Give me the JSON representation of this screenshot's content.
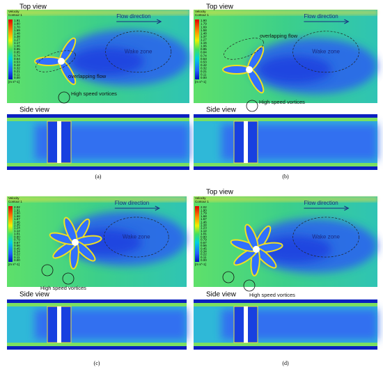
{
  "panels": [
    {
      "label": "(a)",
      "top_view": "Top view",
      "side_view": "Side view",
      "legend": {
        "title": [
          "Velocity",
          "Contour 1"
        ],
        "ticks": [
          "1.91",
          "1.80",
          "1.70",
          "1.59",
          "1.48",
          "1.38",
          "1.27",
          "1.17",
          "1.06",
          "0.95",
          "0.85",
          "0.74",
          "0.64",
          "0.53",
          "0.42",
          "0.32",
          "0.21",
          "0.11",
          "0.00"
        ],
        "unit": "[m s^-1]"
      },
      "annotations": {
        "flow": "Flow direction",
        "wake": "Wake zone",
        "overlap": "overlapping flow",
        "vortices": "High speed vortices"
      }
    },
    {
      "label": "(b)",
      "top_view": "Top view",
      "side_view": "Side view",
      "legend": {
        "title": [
          "Velocity",
          "Contour 1"
        ],
        "ticks": [
          "1.90",
          "1.79",
          "1.69",
          "1.58",
          "1.48",
          "1.37",
          "1.27",
          "1.16",
          "1.06",
          "0.95",
          "0.84",
          "0.74",
          "0.63",
          "0.53",
          "0.42",
          "0.32",
          "0.21",
          "0.11",
          "0.00"
        ],
        "unit": "[m s^-1]"
      },
      "annotations": {
        "flow": "Flow direction",
        "wake": "Wake zone",
        "overlap": "overlapping flow",
        "vortices": "High speed vortices"
      }
    },
    {
      "label": "(c)",
      "side_view": "Side view",
      "legend": {
        "title": [
          "Velocity",
          "Contour 1"
        ],
        "ticks": [
          "2.02",
          "1.91",
          "1.80",
          "1.68",
          "1.57",
          "1.46",
          "1.35",
          "1.24",
          "1.12",
          "1.01",
          "0.90",
          "0.79",
          "0.67",
          "0.56",
          "0.45",
          "0.34",
          "0.22",
          "0.11",
          "0.00"
        ],
        "unit": "[m s^-1]"
      },
      "annotations": {
        "flow": "Flow direction",
        "wake": "Wake zone",
        "vortices": "High speed vortices"
      }
    },
    {
      "label": "(d)",
      "top_view": "Top view",
      "side_view": "Side view",
      "legend": {
        "title": [
          "Velocity",
          "Contour 1"
        ],
        "ticks": [
          "2.02",
          "1.90",
          "1.79",
          "1.68",
          "1.57",
          "1.46",
          "1.34",
          "1.23",
          "1.12",
          "1.01",
          "0.90",
          "0.79",
          "0.67",
          "0.56",
          "0.45",
          "0.34",
          "0.22",
          "0.11",
          "0.00"
        ],
        "unit": "[m s^-1]"
      },
      "annotations": {
        "flow": "Flow direction",
        "wake": "Wake zone",
        "vortices": "High speed vortices"
      }
    }
  ]
}
